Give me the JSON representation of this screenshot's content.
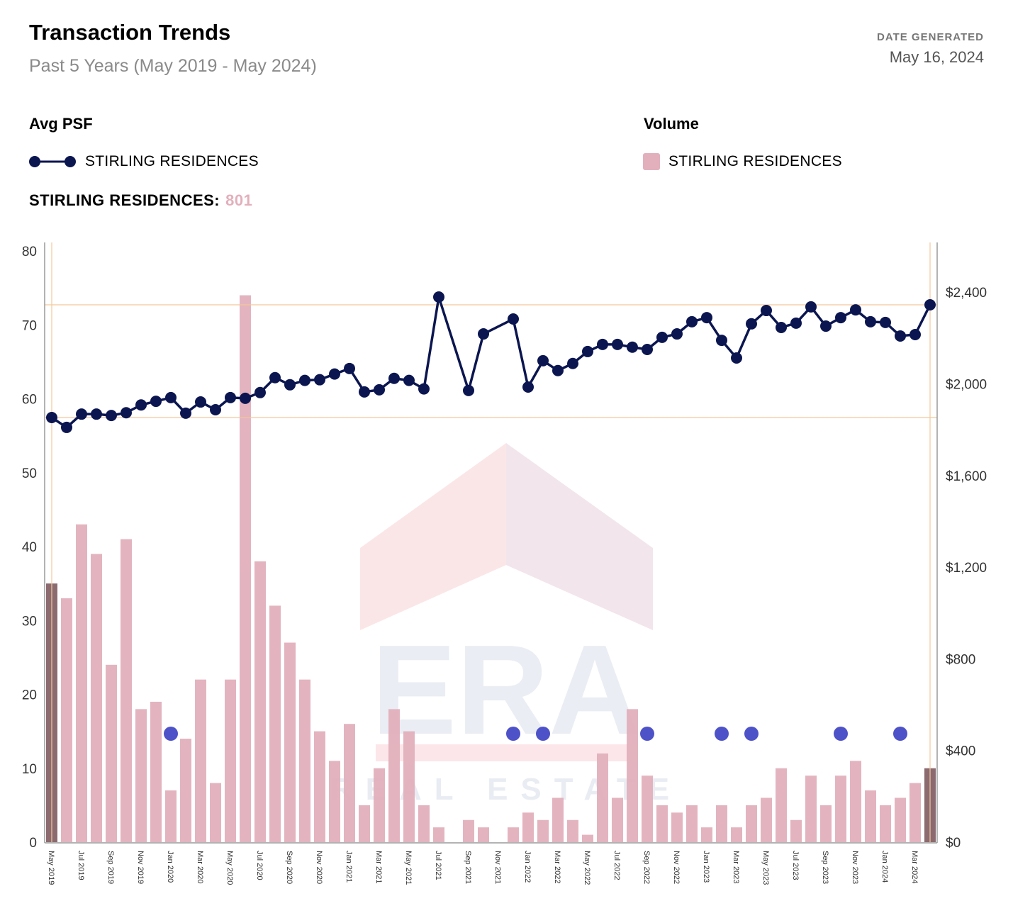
{
  "header": {
    "title": "Transaction Trends",
    "subtitle": "Past 5 Years (May 2019 - May 2024)",
    "date_label": "DATE GENERATED",
    "date_value": "May 16, 2024"
  },
  "legend": {
    "psf_title": "Avg PSF",
    "psf_series": "STIRLING RESIDENCES",
    "volume_title": "Volume",
    "volume_series": "STIRLING RESIDENCES",
    "total_label": "STIRLING RESIDENCES:",
    "total_value": "801"
  },
  "watermark": {
    "brand": "ERA",
    "tagline": "REAL ESTATE"
  },
  "colors": {
    "line": "#0b1650",
    "bar": "#e2b0bc",
    "bar_highlight": "#8b6a70",
    "marker": "#4e52c8",
    "guide": "#f3c89a",
    "axis": "#9a9a9a"
  },
  "chart_data": {
    "type": "bar+line",
    "title": "Transaction Trends",
    "left_axis": {
      "label": "Volume",
      "ylim": [
        0,
        80
      ],
      "ticks": [
        "0",
        "10",
        "20",
        "30",
        "40",
        "50",
        "60",
        "70",
        "80"
      ],
      "tick_values": [
        0,
        10,
        20,
        30,
        40,
        50,
        60,
        70,
        80
      ]
    },
    "right_axis": {
      "label": "Avg PSF",
      "ylim": [
        0,
        2600
      ],
      "ticks": [
        "$0",
        "$400",
        "$800",
        "$1,200",
        "$1,600",
        "$2,000",
        "$2,400"
      ],
      "tick_values": [
        0,
        400,
        800,
        1200,
        1600,
        2000,
        2400
      ]
    },
    "months": [
      "May 2019",
      "Jun 2019",
      "Jul 2019",
      "Aug 2019",
      "Sep 2019",
      "Oct 2019",
      "Nov 2019",
      "Dec 2019",
      "Jan 2020",
      "Feb 2020",
      "Mar 2020",
      "Apr 2020",
      "May 2020",
      "Jun 2020",
      "Jul 2020",
      "Aug 2020",
      "Sep 2020",
      "Oct 2020",
      "Nov 2020",
      "Dec 2020",
      "Jan 2021",
      "Feb 2021",
      "Mar 2021",
      "Apr 2021",
      "May 2021",
      "Jun 2021",
      "Jul 2021",
      "Aug 2021",
      "Sep 2021",
      "Oct 2021",
      "Nov 2021",
      "Dec 2021",
      "Jan 2022",
      "Feb 2022",
      "Mar 2022",
      "Apr 2022",
      "May 2022",
      "Jun 2022",
      "Jul 2022",
      "Aug 2022",
      "Sep 2022",
      "Oct 2022",
      "Nov 2022",
      "Dec 2022",
      "Jan 2023",
      "Feb 2023",
      "Mar 2023",
      "Apr 2023",
      "May 2023",
      "Jun 2023",
      "Jul 2023",
      "Aug 2023",
      "Sep 2023",
      "Oct 2023",
      "Nov 2023",
      "Dec 2023",
      "Jan 2024",
      "Feb 2024",
      "Mar 2024",
      "Apr 2024"
    ],
    "x_tick_labels": [
      "May 2019",
      "Jul 2019",
      "Sep 2019",
      "Nov 2019",
      "Jan 2020",
      "Mar 2020",
      "May 2020",
      "Jul 2020",
      "Sep 2020",
      "Nov 2020",
      "Jan 2021",
      "Mar 2021",
      "May 2021",
      "Jul 2021",
      "Sep 2021",
      "Nov 2021",
      "Jan 2022",
      "Mar 2022",
      "May 2022",
      "Jul 2022",
      "Sep 2022",
      "Nov 2022",
      "Jan 2023",
      "Mar 2023",
      "May 2023",
      "Jul 2023",
      "Sep 2023",
      "Nov 2023",
      "Jan 2024",
      "Mar 2024"
    ],
    "series": [
      {
        "name": "Volume - STIRLING RESIDENCES",
        "type": "bar",
        "axis": "left",
        "values": [
          35,
          33,
          43,
          39,
          24,
          41,
          18,
          19,
          7,
          14,
          22,
          8,
          22,
          74,
          38,
          32,
          27,
          22,
          15,
          11,
          16,
          5,
          10,
          18,
          15,
          5,
          2,
          0,
          3,
          2,
          0,
          2,
          4,
          3,
          6,
          3,
          1,
          12,
          6,
          18,
          9,
          5,
          4,
          5,
          2,
          5,
          2,
          5,
          6,
          10,
          3,
          9,
          5,
          9,
          11,
          7,
          5,
          6,
          8,
          10
        ],
        "highlighted_indices": [
          0,
          59
        ]
      },
      {
        "name": "Avg PSF - STIRLING RESIDENCES",
        "type": "line",
        "axis": "right",
        "values": [
          1853,
          1810,
          1868,
          1868,
          1862,
          1874,
          1908,
          1924,
          1940,
          1872,
          1921,
          1887,
          1940,
          1937,
          1962,
          2027,
          1996,
          2015,
          2018,
          2043,
          2067,
          1965,
          1974,
          2024,
          2015,
          1978,
          2379,
          null,
          1971,
          2218,
          null,
          2283,
          1986,
          2101,
          2058,
          2089,
          2141,
          2172,
          2172,
          2160,
          2150,
          2203,
          2218,
          2271,
          2289,
          2190,
          2113,
          2262,
          2320,
          2246,
          2265,
          2336,
          2252,
          2289,
          2323,
          2271,
          2268,
          2209,
          2215,
          2345
        ]
      }
    ],
    "marker_months": [
      "Jan 2020",
      "Dec 2021",
      "Feb 2022",
      "Sep 2022",
      "Feb 2023",
      "Apr 2023",
      "Oct 2023",
      "Feb 2024"
    ],
    "reference_lines": {
      "psf_values": [
        1853,
        2345
      ],
      "months": [
        "May 2019",
        "Apr 2024"
      ]
    },
    "grid": false,
    "legend_position": "top"
  }
}
